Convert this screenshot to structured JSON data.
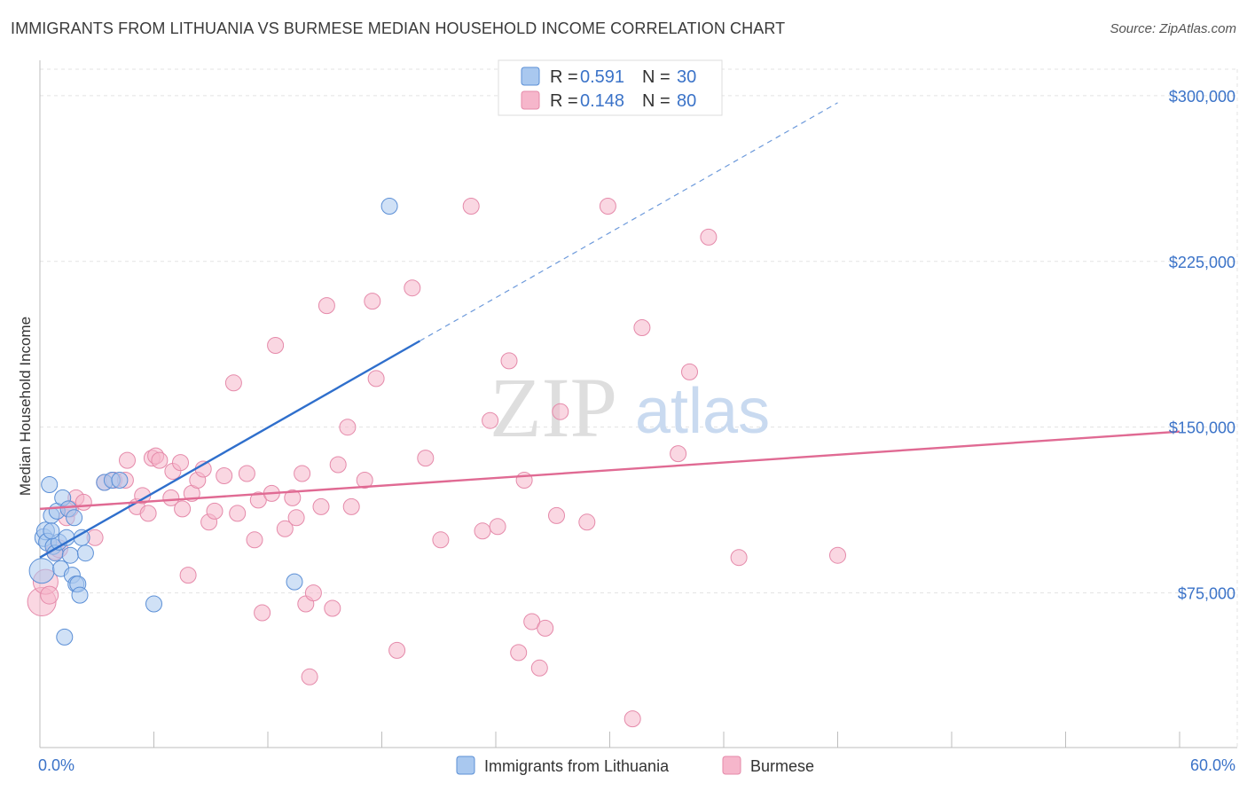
{
  "header": {
    "title": "IMMIGRANTS FROM LITHUANIA VS BURMESE MEDIAN HOUSEHOLD INCOME CORRELATION CHART",
    "source": "Source: ZipAtlas.com"
  },
  "watermark": {
    "zip": "ZIP",
    "atlas": "atlas"
  },
  "legend_top": [
    {
      "r_label": "R =",
      "r_value": "0.591",
      "n_label": "N =",
      "n_value": "30"
    },
    {
      "r_label": "R =",
      "r_value": "0.148",
      "n_label": "N =",
      "n_value": "80"
    }
  ],
  "legend_bottom": [
    {
      "label": "Immigrants from Lithuania"
    },
    {
      "label": "Burmese"
    }
  ],
  "colors": {
    "blue_fill": "#a9c8ef",
    "blue_stroke": "#5b8fd6",
    "blue_line": "#2f6fcc",
    "pink_fill": "#f6b6cb",
    "pink_stroke": "#e58aaa",
    "pink_line": "#e06a93",
    "accent_text": "#3b73c8"
  },
  "chart_data": {
    "type": "scatter",
    "title": "IMMIGRANTS FROM LITHUANIA VS BURMESE MEDIAN HOUSEHOLD INCOME CORRELATION CHART",
    "xlabel": "",
    "ylabel": "Median Household Income",
    "xlim": [
      0,
      60
    ],
    "ylim": [
      5000,
      312000
    ],
    "x_tick_labels": [
      "0.0%",
      "60.0%"
    ],
    "y_ticks": [
      75000,
      150000,
      225000,
      300000
    ],
    "y_tick_labels": [
      "$75,000",
      "$150,000",
      "$225,000",
      "$300,000"
    ],
    "grid": true,
    "series": [
      {
        "name": "Immigrants from Lithuania",
        "color": "blue",
        "r": 0.591,
        "n": 30,
        "trend": {
          "x0": 0,
          "y0": 91000,
          "x1": 20,
          "y1": 189000,
          "dash_to_x": 42
        },
        "points": [
          [
            0.1,
            85000,
            14
          ],
          [
            0.2,
            100000,
            10
          ],
          [
            0.3,
            103000,
            10
          ],
          [
            0.4,
            98000,
            10
          ],
          [
            0.5,
            124000,
            9
          ],
          [
            0.6,
            110000,
            9
          ],
          [
            0.7,
            96000,
            9
          ],
          [
            0.8,
            93000,
            9
          ],
          [
            0.9,
            112000,
            9
          ],
          [
            1.0,
            98000,
            9
          ],
          [
            1.1,
            86000,
            9
          ],
          [
            1.2,
            118000,
            9
          ],
          [
            1.4,
            100000,
            9
          ],
          [
            1.5,
            113000,
            9
          ],
          [
            1.6,
            92000,
            9
          ],
          [
            1.7,
            83000,
            9
          ],
          [
            1.8,
            109000,
            9
          ],
          [
            1.9,
            79000,
            9
          ],
          [
            2.0,
            79000,
            9
          ],
          [
            2.1,
            74000,
            9
          ],
          [
            2.2,
            100000,
            9
          ],
          [
            2.4,
            93000,
            9
          ],
          [
            1.3,
            55000,
            9
          ],
          [
            3.4,
            125000,
            9
          ],
          [
            3.8,
            126000,
            9
          ],
          [
            4.2,
            126000,
            9
          ],
          [
            6.0,
            70000,
            9
          ],
          [
            13.4,
            80000,
            9
          ],
          [
            18.4,
            250000,
            9
          ],
          [
            0.6,
            103000,
            9
          ]
        ]
      },
      {
        "name": "Burmese",
        "color": "pink",
        "r": 0.148,
        "n": 80,
        "trend": {
          "x0": 0,
          "y0": 113000,
          "x1": 60,
          "y1": 148000
        },
        "points": [
          [
            0.1,
            71000,
            16
          ],
          [
            0.3,
            80000,
            14
          ],
          [
            0.8,
            94000,
            10
          ],
          [
            1.0,
            95000,
            10
          ],
          [
            1.4,
            109000,
            9
          ],
          [
            1.6,
            113000,
            9
          ],
          [
            1.9,
            118000,
            9
          ],
          [
            2.3,
            116000,
            9
          ],
          [
            2.9,
            100000,
            9
          ],
          [
            3.4,
            125000,
            9
          ],
          [
            3.9,
            126000,
            9
          ],
          [
            4.5,
            126000,
            9
          ],
          [
            4.6,
            135000,
            9
          ],
          [
            5.1,
            114000,
            9
          ],
          [
            5.4,
            119000,
            9
          ],
          [
            5.7,
            111000,
            9
          ],
          [
            5.9,
            136000,
            9
          ],
          [
            6.1,
            137000,
            9
          ],
          [
            6.3,
            135000,
            9
          ],
          [
            6.9,
            118000,
            9
          ],
          [
            7.0,
            130000,
            9
          ],
          [
            7.4,
            134000,
            9
          ],
          [
            7.5,
            113000,
            9
          ],
          [
            7.8,
            83000,
            9
          ],
          [
            8.0,
            120000,
            9
          ],
          [
            8.3,
            126000,
            9
          ],
          [
            8.6,
            131000,
            9
          ],
          [
            8.9,
            107000,
            9
          ],
          [
            9.2,
            112000,
            9
          ],
          [
            9.7,
            128000,
            9
          ],
          [
            10.2,
            170000,
            9
          ],
          [
            10.4,
            111000,
            9
          ],
          [
            10.9,
            129000,
            9
          ],
          [
            11.3,
            99000,
            9
          ],
          [
            11.5,
            117000,
            9
          ],
          [
            11.7,
            66000,
            9
          ],
          [
            12.2,
            120000,
            9
          ],
          [
            12.4,
            187000,
            9
          ],
          [
            12.9,
            104000,
            9
          ],
          [
            13.3,
            118000,
            9
          ],
          [
            13.5,
            109000,
            9
          ],
          [
            13.8,
            129000,
            9
          ],
          [
            14.0,
            70000,
            9
          ],
          [
            14.2,
            37000,
            9
          ],
          [
            14.4,
            75000,
            9
          ],
          [
            14.8,
            114000,
            9
          ],
          [
            15.1,
            205000,
            9
          ],
          [
            15.4,
            68000,
            9
          ],
          [
            15.7,
            133000,
            9
          ],
          [
            16.2,
            150000,
            9
          ],
          [
            16.4,
            114000,
            9
          ],
          [
            17.1,
            126000,
            9
          ],
          [
            17.5,
            207000,
            9
          ],
          [
            17.7,
            172000,
            9
          ],
          [
            18.8,
            49000,
            9
          ],
          [
            19.6,
            213000,
            9
          ],
          [
            20.3,
            136000,
            9
          ],
          [
            21.1,
            99000,
            9
          ],
          [
            22.7,
            250000,
            9
          ],
          [
            23.3,
            103000,
            9
          ],
          [
            23.7,
            153000,
            9
          ],
          [
            24.1,
            105000,
            9
          ],
          [
            24.7,
            180000,
            9
          ],
          [
            25.2,
            48000,
            9
          ],
          [
            25.5,
            126000,
            9
          ],
          [
            25.9,
            62000,
            9
          ],
          [
            26.3,
            41000,
            9
          ],
          [
            26.6,
            59000,
            9
          ],
          [
            27.2,
            110000,
            9
          ],
          [
            27.4,
            157000,
            9
          ],
          [
            28.8,
            107000,
            9
          ],
          [
            29.9,
            250000,
            9
          ],
          [
            31.2,
            18000,
            9
          ],
          [
            31.7,
            195000,
            9
          ],
          [
            33.6,
            138000,
            9
          ],
          [
            34.2,
            175000,
            9
          ],
          [
            35.2,
            236000,
            9
          ],
          [
            36.8,
            91000,
            9
          ],
          [
            42.0,
            92000,
            9
          ],
          [
            0.5,
            74000,
            10
          ]
        ]
      }
    ]
  }
}
